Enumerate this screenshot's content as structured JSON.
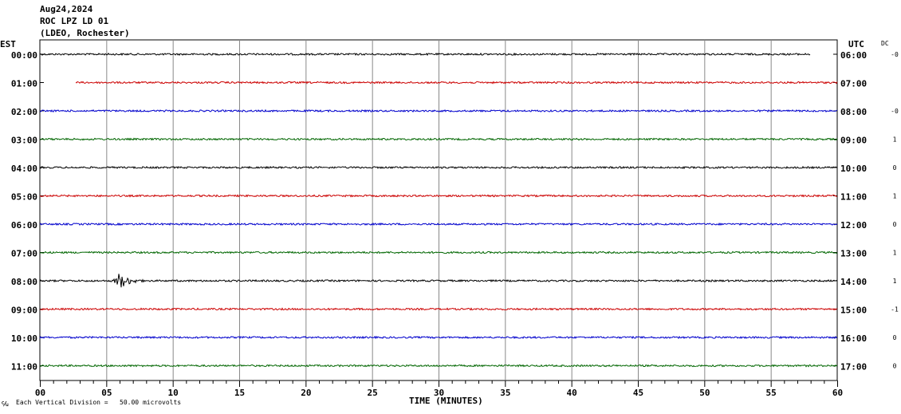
{
  "header": {
    "date": "Aug24,2024",
    "station": "ROC LPZ LD 01",
    "network": "(LDEO, Rochester)"
  },
  "labels": {
    "left_tz": "EST",
    "right_tz": "UTC",
    "dc": "DC",
    "xlabel": "TIME (MINUTES)",
    "footer_glyph": "℆",
    "footer_note": "Each Vertical Division =   50.00 microvolts"
  },
  "chart_data": {
    "type": "line",
    "title": "",
    "xlabel": "TIME (MINUTES)",
    "xlim": [
      0,
      60
    ],
    "x_ticks": [
      "00",
      "05",
      "10",
      "15",
      "20",
      "25",
      "30",
      "35",
      "40",
      "45",
      "50",
      "55",
      "60"
    ],
    "grid": true,
    "colors": {
      "black": "#000000",
      "red": "#cc0000",
      "blue": "#0000cc",
      "green": "#006600"
    },
    "series": [
      {
        "est": "00:00",
        "utc": "06:00",
        "dc": "-0",
        "color": "#000000",
        "start_min": 0,
        "end_min": 58,
        "events": []
      },
      {
        "est": "01:00",
        "utc": "07:00",
        "dc": "",
        "color": "#cc0000",
        "start_min": 2.7,
        "end_min": 60,
        "events": []
      },
      {
        "est": "02:00",
        "utc": "08:00",
        "dc": "-0",
        "color": "#0000cc",
        "start_min": 0,
        "end_min": 60,
        "events": []
      },
      {
        "est": "03:00",
        "utc": "09:00",
        "dc": "1",
        "color": "#006600",
        "start_min": 0,
        "end_min": 60,
        "events": []
      },
      {
        "est": "04:00",
        "utc": "10:00",
        "dc": "0",
        "color": "#000000",
        "start_min": 0,
        "end_min": 60,
        "events": []
      },
      {
        "est": "05:00",
        "utc": "11:00",
        "dc": "1",
        "color": "#cc0000",
        "start_min": 0,
        "end_min": 60,
        "events": []
      },
      {
        "est": "06:00",
        "utc": "12:00",
        "dc": "0",
        "color": "#0000cc",
        "start_min": 0,
        "end_min": 60,
        "events": []
      },
      {
        "est": "07:00",
        "utc": "13:00",
        "dc": "1",
        "color": "#006600",
        "start_min": 0,
        "end_min": 60,
        "events": []
      },
      {
        "est": "08:00",
        "utc": "14:00",
        "dc": "1",
        "color": "#000000",
        "start_min": 0,
        "end_min": 60,
        "events": [
          {
            "start_min": 5.5,
            "end_min": 9.5
          }
        ]
      },
      {
        "est": "09:00",
        "utc": "15:00",
        "dc": "-1",
        "color": "#cc0000",
        "start_min": 0,
        "end_min": 60,
        "events": []
      },
      {
        "est": "10:00",
        "utc": "16:00",
        "dc": "0",
        "color": "#0000cc",
        "start_min": 0,
        "end_min": 60,
        "events": []
      },
      {
        "est": "11:00",
        "utc": "17:00",
        "dc": "0",
        "color": "#006600",
        "start_min": 0,
        "end_min": 60,
        "events": []
      }
    ]
  }
}
